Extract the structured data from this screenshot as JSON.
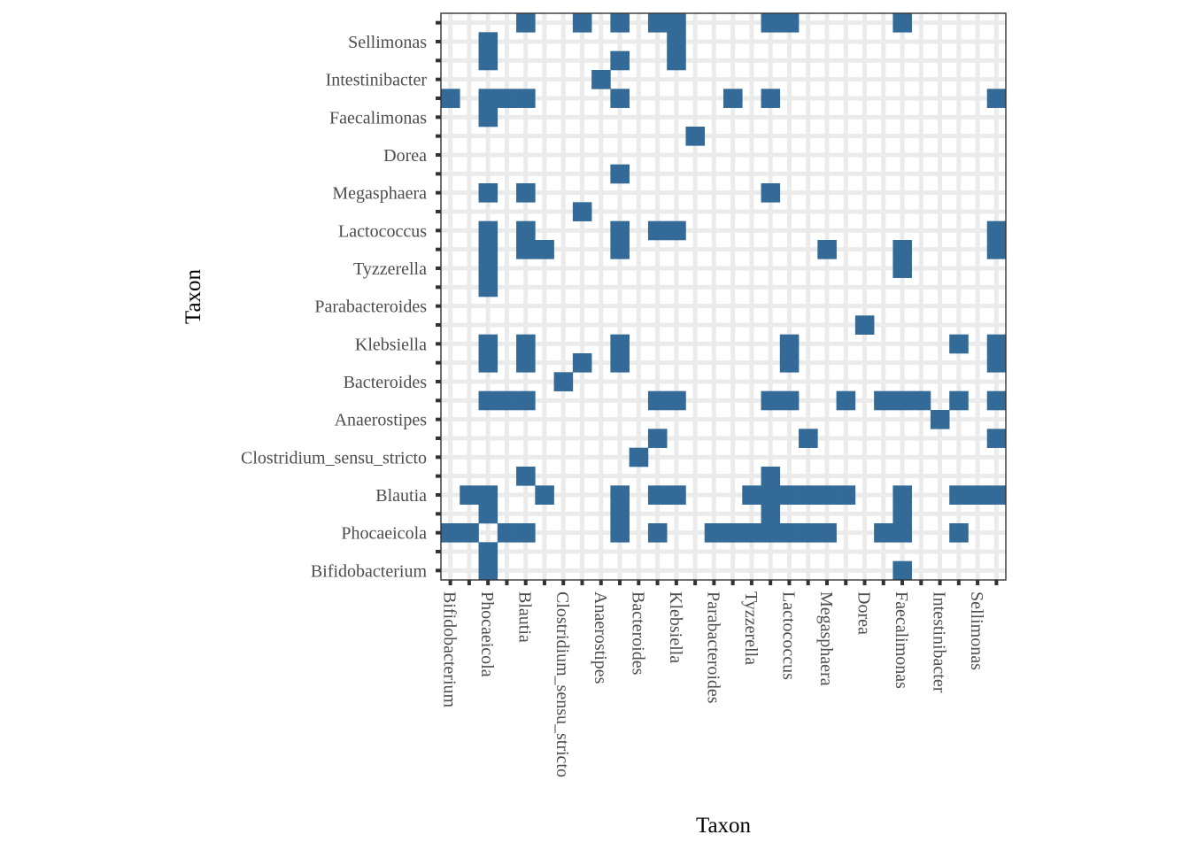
{
  "chart_data": {
    "type": "heatmap",
    "xlabel": "Taxon",
    "ylabel": "Taxon",
    "x_tick_labels": [
      "Bifidobacterium",
      "Phocaeicola",
      "Blautia",
      "Clostridium_sensu_stricto",
      "Anaerostipes",
      "Bacteroides",
      "Klebsiella",
      "Parabacteroides",
      "Tyzzerella",
      "Lactococcus",
      "Megasphaera",
      "Dorea",
      "Faecalimonas",
      "Intestinibacter",
      "Sellimonas"
    ],
    "y_tick_labels": [
      "Bifidobacterium",
      "Phocaeicola",
      "Blautia",
      "Clostridium_sensu_stricto",
      "Anaerostipes",
      "Bacteroides",
      "Klebsiella",
      "Parabacteroides",
      "Tyzzerella",
      "Lactococcus",
      "Megasphaera",
      "Dorea",
      "Faecalimonas",
      "Intestinibacter",
      "Sellimonas"
    ],
    "n_cols": 30,
    "n_rows": 30,
    "cells_by_row": [
      [
        2,
        24
      ],
      [
        2
      ],
      [
        0,
        1,
        3,
        4,
        9,
        11,
        14,
        15,
        16,
        17,
        18,
        19,
        20,
        23,
        24,
        27
      ],
      [
        2,
        9,
        17,
        24
      ],
      [
        1,
        2,
        5,
        9,
        11,
        12,
        16,
        17,
        18,
        19,
        20,
        21,
        24,
        27,
        28,
        29
      ],
      [
        4,
        17
      ],
      [
        10
      ],
      [
        11,
        19,
        29
      ],
      [
        26
      ],
      [
        2,
        3,
        4,
        11,
        12,
        17,
        18,
        21,
        23,
        24,
        25,
        27,
        29
      ],
      [
        6
      ],
      [
        2,
        4,
        7,
        9,
        18,
        29
      ],
      [
        2,
        4,
        9,
        18,
        27,
        29
      ],
      [
        22
      ],
      [],
      [
        2
      ],
      [
        2,
        24
      ],
      [
        2,
        4,
        5,
        9,
        20,
        24,
        29
      ],
      [
        2,
        4,
        9,
        11,
        12,
        29
      ],
      [
        7
      ],
      [
        2,
        4,
        17
      ],
      [
        9
      ],
      [],
      [
        13
      ],
      [
        2
      ],
      [
        0,
        2,
        3,
        4,
        9,
        15,
        17,
        29
      ],
      [
        8
      ],
      [
        2,
        9,
        12
      ],
      [
        2,
        12
      ],
      [
        4,
        7,
        9,
        11,
        12,
        17,
        18,
        24
      ]
    ],
    "cell_color": "#336a98",
    "grid": true,
    "panel_background": "#ffffff",
    "grid_color": "#ebebeb"
  }
}
